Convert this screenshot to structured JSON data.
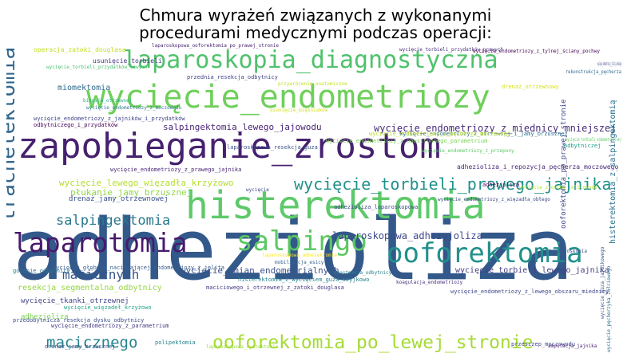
{
  "title_lines": [
    "Chmura wyrażeń związanych z wykonanymi",
    "procedurami medycznymi podczas operacji:"
  ],
  "chart_data": {
    "type": "wordcloud",
    "title": "Chmura wyrażeń związanych z wykonanymi procedurami medycznymi podczas operacji:",
    "words": [
      {
        "text": "adhezioliza",
        "weight": 100,
        "color": "#33598b",
        "rotate": false
      },
      {
        "text": "zapobieganie_zrostom",
        "weight": 62,
        "color": "#46216f",
        "rotate": false
      },
      {
        "text": "histerektomia",
        "weight": 58,
        "color": "#5ec96a",
        "rotate": false
      },
      {
        "text": "wycięcie_endometriozy",
        "weight": 50,
        "color": "#6fcf5b",
        "rotate": false
      },
      {
        "text": "laparotomia",
        "weight": 40,
        "color": "#481a6c",
        "rotate": false
      },
      {
        "text": "salpingo",
        "weight": 40,
        "color": "#5cc863",
        "rotate": false
      },
      {
        "text": "ooforektomia",
        "weight": 38,
        "color": "#22908c",
        "rotate": false
      },
      {
        "text": "laparoskopia_diagnostyczna",
        "weight": 36,
        "color": "#4fc26b",
        "rotate": false
      },
      {
        "text": "trachelektomia",
        "weight": 30,
        "color": "#31668e",
        "rotate": true
      },
      {
        "text": "ooforektomia_po_lewej_stronie",
        "weight": 22,
        "color": "#a5db36",
        "rotate": false
      },
      {
        "text": "wycięcie_torbieli_prawego_jajnika",
        "weight": 20,
        "color": "#21918c",
        "rotate": false
      },
      {
        "text": "macicznego",
        "weight": 19,
        "color": "#26828e",
        "rotate": false
      },
      {
        "text": "salpingektomia",
        "weight": 18,
        "color": "#2a788e",
        "rotate": false
      },
      {
        "text": "macicznych",
        "weight": 18,
        "color": "#39568c",
        "rotate": false
      },
      {
        "text": "wycięcie_endometriozy_z_miednicy_mniejszej",
        "weight": 13,
        "color": "#472c7a",
        "rotate": false
      },
      {
        "text": "histerektomia_z_salpingektomią",
        "weight": 13,
        "color": "#2c728e",
        "rotate": true
      },
      {
        "text": "laparoskopowa_adhezyjoliza",
        "weight": 12,
        "color": "#3e4989",
        "rotate": false
      },
      {
        "text": "salpingektomia_lewego_jajowodu",
        "weight": 11,
        "color": "#482475",
        "rotate": false
      },
      {
        "text": "wycięcie_zmian_endometrialnych",
        "weight": 11,
        "color": "#3b528b",
        "rotate": false
      },
      {
        "text": "wycięcie_lewego_więzadła_krzyżowo",
        "weight": 11,
        "color": "#b5de2b",
        "rotate": false
      },
      {
        "text": "płukanie_jamy_brzusznej",
        "weight": 11,
        "color": "#8fd744",
        "rotate": false
      },
      {
        "text": "resekcja_segmentalna_odbytnicy",
        "weight": 10,
        "color": "#93d741",
        "rotate": false
      },
      {
        "text": "ooforektomia_po_prawej_stronie",
        "weight": 9,
        "color": "#3f4788",
        "rotate": true
      },
      {
        "text": "miomektomia",
        "weight": 9,
        "color": "#2f6b8e",
        "rotate": false
      },
      {
        "text": "wycięcie_torbieli_lewego_jajnika",
        "weight": 9,
        "color": "#433e85",
        "rotate": false
      },
      {
        "text": "drenaż_jamy_otrzewnowej",
        "weight": 8,
        "color": "#3b528b",
        "rotate": false
      },
      {
        "text": "wycięcie_tkanki_otrzewnej",
        "weight": 8,
        "color": "#414487",
        "rotate": false
      },
      {
        "text": "adhezjoliza",
        "weight": 8,
        "color": "#7ad151",
        "rotate": false
      },
      {
        "text": "operacja_zatoki_douglasa",
        "weight": 7,
        "color": "#c2df23",
        "rotate": false
      },
      {
        "text": "usunięcie_torbieli",
        "weight": 7,
        "color": "#46337e",
        "rotate": false
      },
      {
        "text": "polipektomia",
        "weight": 6,
        "color": "#26828e",
        "rotate": false
      },
      {
        "text": "adhezioliza_laparoskopowa",
        "weight": 6,
        "color": "#3e4a89",
        "rotate": false
      },
      {
        "text": "laparoskopowa_resekcja_guza",
        "weight": 6,
        "color": "#3b528b",
        "rotate": false
      },
      {
        "text": "przednia_resekcja_odbytnicy",
        "weight": 6,
        "color": "#414487",
        "rotate": false
      },
      {
        "text": "golenie_odbytnicy",
        "weight": 6,
        "color": "#2a788e",
        "rotate": false
      },
      {
        "text": "przesczep_moczowodu",
        "weight": 6,
        "color": "#404688",
        "rotate": false
      },
      {
        "text": "adhezioliza_i_repozycja_pęcherza_moczowego",
        "weight": 6,
        "color": "#482878",
        "rotate": false
      },
      {
        "text": "adhezjoliza",
        "weight": 6,
        "color": "#450559",
        "rotate": false
      },
      {
        "text": "odbytniczej",
        "weight": 5,
        "color": "#1f9e89",
        "rotate": false
      },
      {
        "text": "drenaż_otrzewnowy",
        "weight": 5,
        "color": "#d8e219",
        "rotate": false
      },
      {
        "text": "wycięcie_endometriozy_z_prawego_jajnika",
        "weight": 5,
        "color": "#482475",
        "rotate": false
      },
      {
        "text": "wycięcie_endometriozy_z_jajników_i_przydatków",
        "weight": 5,
        "color": "#414487",
        "rotate": false
      },
      {
        "text": "wycięcie_endometriozy_z_obustronnego_parametrium",
        "weight": 5,
        "color": "#7ad151",
        "rotate": false
      },
      {
        "text": "odbytniczego_i_przydatków",
        "weight": 5,
        "color": "#440154",
        "rotate": false
      },
      {
        "text": "wycięcie_głęboko_naciekającej_endometriozy_z_jelita",
        "weight": 5,
        "color": "#355f8d",
        "rotate": false
      },
      {
        "text": "histerektomia_z_wycięciem_guza_szyjkowo",
        "weight": 5,
        "color": "#25848e",
        "rotate": false
      },
      {
        "text": "maciciowego_i_otrzewnej_z_zatoki_douglasa",
        "weight": 5,
        "color": "#443a83",
        "rotate": false
      },
      {
        "text": "wycięcie_endometriozy_z_lewego_obszaru_miednicy",
        "weight": 5,
        "color": "#3f4788",
        "rotate": false
      },
      {
        "text": "wycięcie_endometriozy_z_parametrium",
        "weight": 5,
        "color": "#443983",
        "rotate": false
      },
      {
        "text": "przedobytnicza_resekcja_dysku_odbytnicy",
        "weight": 5,
        "color": "#3d4d8a",
        "rotate": false
      },
      {
        "text": "wycięcie_więzadeł_krzyżowo",
        "weight": 5,
        "color": "#20a386",
        "rotate": false
      },
      {
        "text": "wycięcie_endometriozy_z_otrzewnej_i_jamy_brzusznej",
        "weight": 5,
        "color": "#2d708e",
        "rotate": false
      },
      {
        "text": "drenaż_jamy_brzusznej",
        "weight": 5,
        "color": "#3a538b",
        "rotate": false
      },
      {
        "text": "wycięcie_endometriozy_z_pęcherza_moczowego",
        "weight": 5,
        "color": "#b8de29",
        "rotate": false
      },
      {
        "text": "wycięcie_endometriozy_z_tylnej_ściany_pochwy",
        "weight": 4,
        "color": "#440154",
        "rotate": false
      },
      {
        "text": "wycięcie_torbieli_przydatków_prawych",
        "weight": 4,
        "color": "#472d7b",
        "rotate": false
      },
      {
        "text": "laparoskopowa_ooforektomia_po_prawej_stronie",
        "weight": 4,
        "color": "#482173",
        "rotate": false
      },
      {
        "text": "przywrócenie_anatomiczne",
        "weight": 4,
        "color": "#c0df25",
        "rotate": false
      },
      {
        "text": "mobilizacja_esicy",
        "weight": 4,
        "color": "#34608d",
        "rotate": false
      },
      {
        "text": "koagulacja_endometriozy",
        "weight": 4,
        "color": "#46307e",
        "rotate": false
      },
      {
        "text": "anastomoza_odbytnicy",
        "weight": 4,
        "color": "#277f8e",
        "rotate": false
      },
      {
        "text": "laparoskopowa_cystektomia",
        "weight": 4,
        "color": "#a0da39",
        "rotate": false
      },
      {
        "text": "wycięcie_endometriozy_z_przepony",
        "weight": 4,
        "color": "#5ac864",
        "rotate": false
      },
      {
        "text": "wycięcie_guza_jajnikowego",
        "weight": 4,
        "color": "#38588c",
        "rotate": true
      },
      {
        "text": "wycięcie_pęcherzyka_żółciowego",
        "weight": 4,
        "color": "#2e6e8e",
        "rotate": true
      },
      {
        "text": "amputacja_jajnika",
        "weight": 3,
        "color": "#481f70",
        "rotate": false
      },
      {
        "text": "wycięcie_torbieli_przydatków_lewych",
        "weight": 3,
        "color": "#4ac16d",
        "rotate": false
      },
      {
        "text": "wycięcie_endometriozy_z_moczowodu",
        "weight": 3,
        "color": "#2a768e",
        "rotate": false
      },
      {
        "text": "laparoskopowa_adnexektomia",
        "weight": 3,
        "color": "#fde725",
        "rotate": false
      },
      {
        "text": "histeroskopia",
        "weight": 3,
        "color": "#3b528b",
        "rotate": false
      },
      {
        "text": "wycięcie_zrostów_jelitowych",
        "weight": 3,
        "color": "#b2dd2d",
        "rotate": false
      },
      {
        "text": "biopsja_otrzewnej",
        "weight": 3,
        "color": "#25ac82",
        "rotate": false
      },
      {
        "text": "wycięcie_endometriozy_z_więzadła_obłego",
        "weight": 3,
        "color": "#3e4989",
        "rotate": false
      },
      {
        "text": "usunięcie_mięśniaków",
        "weight": 3,
        "color": "#d2e21b",
        "rotate": false
      },
      {
        "text": "wycięcie",
        "weight": 3,
        "color": "#3f4889",
        "rotate": false
      },
      {
        "text": "rekonstrukcja_pęcherza",
        "weight": 3,
        "color": "#31688e",
        "rotate": false
      },
      {
        "text": "wycięcie_torbieli_endometrialnej",
        "weight": 3,
        "color": "#5ec962",
        "rotate": false
      },
      {
        "text": "wycięcie_endometriozy_z_jelita_cienkiego",
        "weight": 3,
        "color": "#3f4788",
        "rotate": false
      }
    ]
  }
}
